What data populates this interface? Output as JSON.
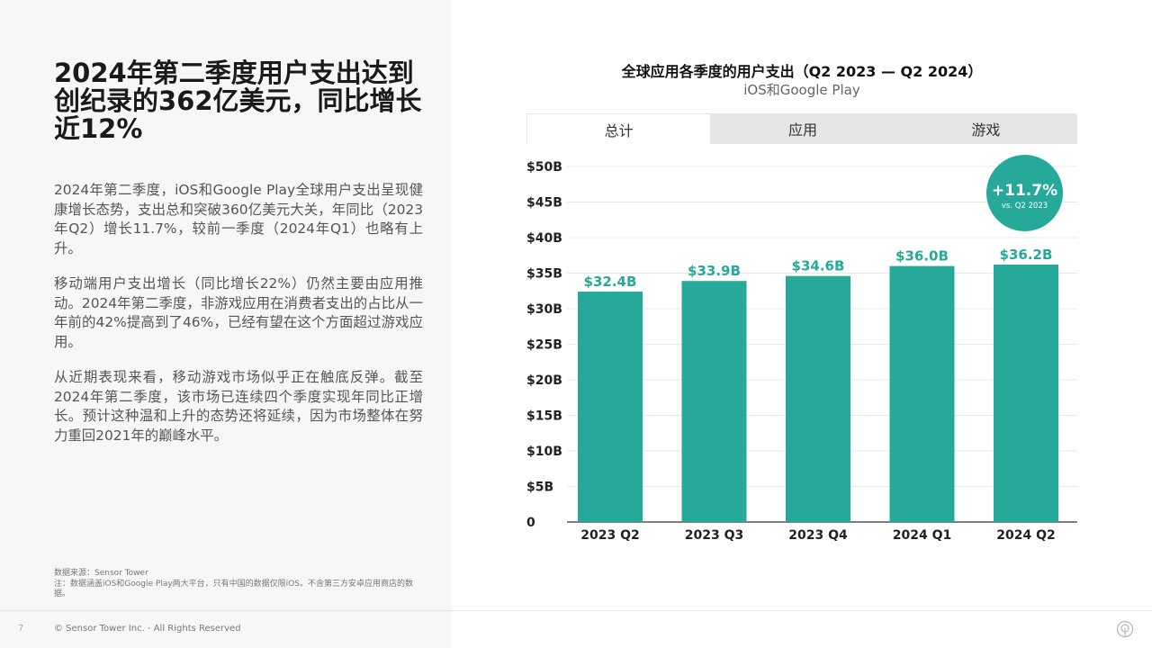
{
  "left": {
    "headline": "2024年第二季度用户支出达到创纪录的362亿美元，同比增长近12%",
    "paragraphs": [
      "2024年第二季度，iOS和Google Play全球用户支出呈现健康增长态势，支出总和突破360亿美元大关，年同比（2023年Q2）增长11.7%，较前一季度（2024年Q1）也略有上升。",
      "移动端用户支出增长（同比增长22%）仍然主要由应用推动。2024年第二季度，非游戏应用在消费者支出的占比从一年前的42%提高到了46%，已经有望在这个方面超过游戏应用。",
      "从近期表现来看，移动游戏市场似乎正在触底反弹。截至2024年第二季度，该市场已连续四个季度实现年同比正增长。预计这种温和上升的态势还将延续，因为市场整体在努力重回2021年的巅峰水平。"
    ],
    "source_line1": "数据来源：Sensor Tower",
    "source_line2": "注：数据涵盖iOS和Google Play两大平台，只有中国的数据仅限iOS。不含第三方安卓应用商店的数据。"
  },
  "footer": {
    "page_number": "7",
    "copyright": "© Sensor Tower Inc. - All Rights Reserved",
    "logo_icon": "sensor-tower-logo-icon"
  },
  "tabs": [
    {
      "label": "总计",
      "active": true
    },
    {
      "label": "应用",
      "active": false
    },
    {
      "label": "游戏",
      "active": false
    }
  ],
  "badge": {
    "value": "+11.7%",
    "label": "vs. Q2 2023"
  },
  "colors": {
    "bar": "#27a99a",
    "badge": "#27a99a",
    "value_label": "#27a99a"
  },
  "chart_data": {
    "type": "bar",
    "title": "全球应用各季度的用户支出（Q2 2023 — Q2 2024）",
    "subtitle": "iOS和Google Play",
    "categories": [
      "2023 Q2",
      "2023 Q3",
      "2023 Q4",
      "2024 Q1",
      "2024 Q2"
    ],
    "values": [
      32.4,
      33.9,
      34.6,
      36.0,
      36.2
    ],
    "value_labels": [
      "$32.4B",
      "$33.9B",
      "$34.6B",
      "$36.0B",
      "$36.2B"
    ],
    "ylim": [
      0,
      50
    ],
    "yticks": [
      0,
      5,
      10,
      15,
      20,
      25,
      30,
      35,
      40,
      45,
      50
    ],
    "ytick_labels": [
      "0",
      "$5B",
      "$10B",
      "$15B",
      "$20B",
      "$25B",
      "$30B",
      "$35B",
      "$40B",
      "$45B",
      "$50B"
    ],
    "grid": true
  }
}
